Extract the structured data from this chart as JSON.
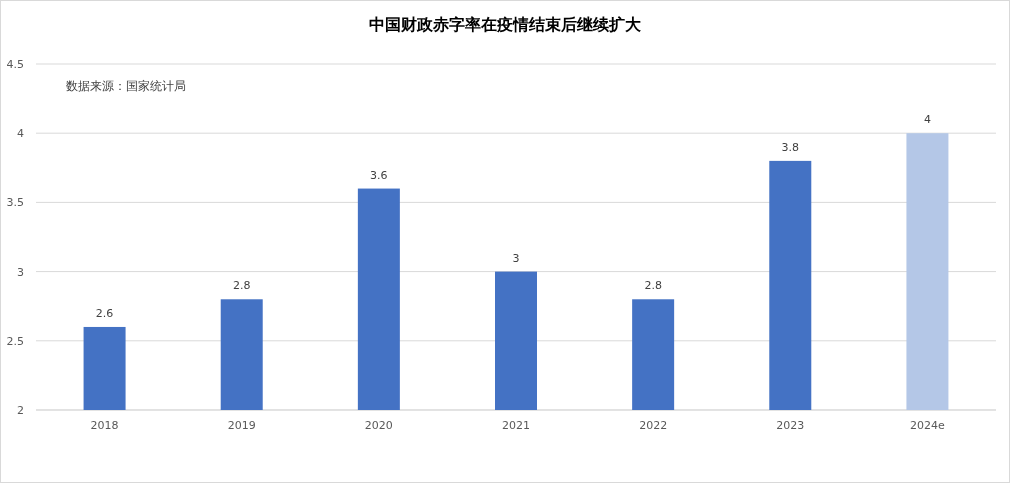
{
  "chart_data": {
    "type": "bar",
    "title": "中国财政赤字率在疫情结束后继续扩大",
    "categories": [
      "2018",
      "2019",
      "2020",
      "2021",
      "2022",
      "2023",
      "2024e"
    ],
    "values": [
      2.6,
      2.8,
      3.6,
      3,
      2.8,
      3.8,
      4
    ],
    "colors": [
      "#4472c4",
      "#4472c4",
      "#4472c4",
      "#4472c4",
      "#4472c4",
      "#4472c4",
      "#b4c7e7"
    ],
    "ylim": [
      2,
      4.5
    ],
    "yticks": [
      2,
      2.5,
      3,
      3.5,
      4,
      4.5
    ],
    "grid": "y",
    "data_labels": true,
    "annotations": [
      "数据来源：国家统计局"
    ]
  }
}
